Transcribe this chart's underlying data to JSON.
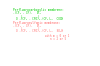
{
  "background_color": "#ffffff",
  "section1_title": "Perfluorocarboxylic membrane:",
  "section1_color": "#00cc00",
  "section2_title": "Perfluorosulfonic membrane:",
  "section2_color": "#ff6666",
  "note_color": "#ff6666",
  "font_size_title": 2.2,
  "font_size_body": 2.0,
  "font_size_note": 1.9
}
